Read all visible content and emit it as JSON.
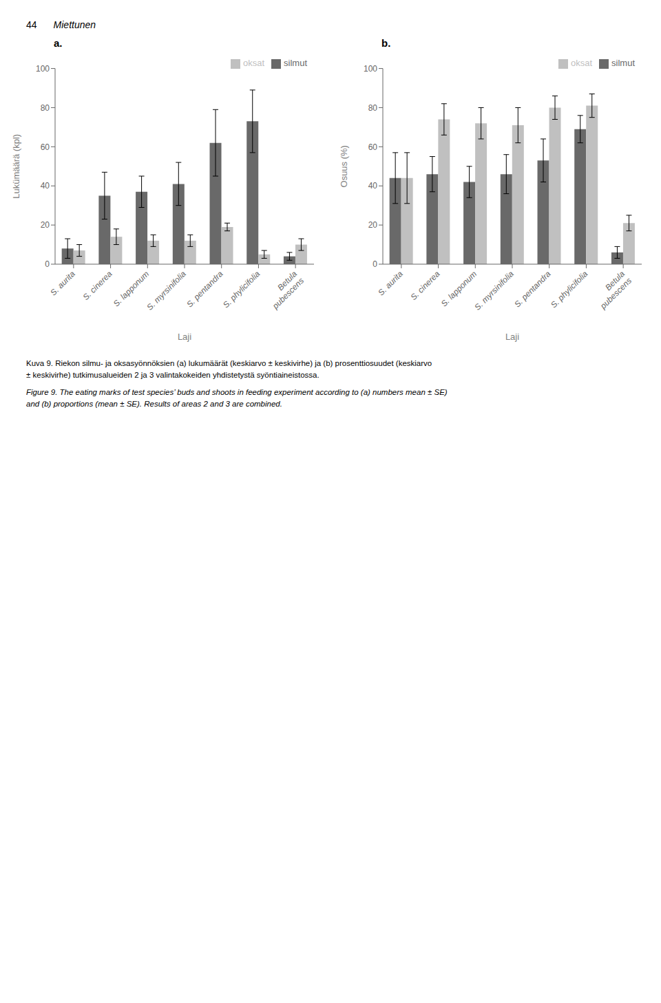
{
  "chart_data": [
    {
      "type": "bar",
      "title": "a.",
      "categories": [
        "S. aurita",
        "S. cinerea",
        "S. lapponum",
        "S. myrsinifolia",
        "S. pentandra",
        "S. phylicifolia",
        "Betula\npubescens"
      ],
      "xlabel": "Laji",
      "ylabel": "Lukümäärä (kpl)",
      "series": [
        {
          "name": "silmut",
          "color": "#696969",
          "values": [
            8,
            35,
            37,
            41,
            62,
            73,
            4
          ],
          "errors": [
            5,
            12,
            8,
            11,
            17,
            16,
            2
          ]
        },
        {
          "name": "oksat",
          "color": "#c0c0c0",
          "values": [
            7,
            14,
            12,
            12,
            19,
            5,
            10
          ],
          "errors": [
            3,
            4,
            3,
            3,
            2,
            2,
            3
          ]
        }
      ],
      "ylim": [
        0,
        100
      ],
      "yticks": [
        0,
        20,
        40,
        60,
        80,
        100
      ],
      "grid": false,
      "legend": "upper right"
    },
    {
      "type": "bar",
      "title": "b.",
      "categories": [
        "S. aurita",
        "S. cinerea",
        "S. lapponum",
        "S. myrsinifolia",
        "S. pentandra",
        "S. phylicifolia",
        "Betula\npubescens"
      ],
      "xlabel": "Laji",
      "ylabel": "Osuus (%)",
      "series": [
        {
          "name": "silmut",
          "color": "#696969",
          "values": [
            44,
            46,
            42,
            46,
            53,
            69,
            6
          ],
          "errors": [
            13,
            9,
            8,
            10,
            11,
            7,
            3
          ]
        },
        {
          "name": "oksat",
          "color": "#c0c0c0",
          "values": [
            44,
            74,
            72,
            71,
            80,
            81,
            21
          ],
          "errors": [
            13,
            8,
            8,
            9,
            6,
            6,
            4
          ]
        }
      ],
      "ylim": [
        0,
        100
      ],
      "yticks": [
        0,
        20,
        40,
        60,
        80,
        100
      ],
      "grid": false,
      "legend": "upper right"
    }
  ],
  "annotations": [
    "44",
    "Miettunen",
    "Kuva 9. Riekon silmu- ja oksasyönnöksien (a) lukumäärät (keskiarvo ± keskivirhe) ja (b) prosenttiosuudet (keskiarvo",
    "± keskivirhe) tutkimusalueiden 2 ja 3 valintakokeiden yhdistetystä syöntiaineistossa.",
    "Figure 9. The eating marks of test species’ buds and shoots in feeding experiment according to (a) numbers mean ± SE)",
    "and (b) proportions (mean ± SE). Results of areas 2 and 3 are combined."
  ]
}
